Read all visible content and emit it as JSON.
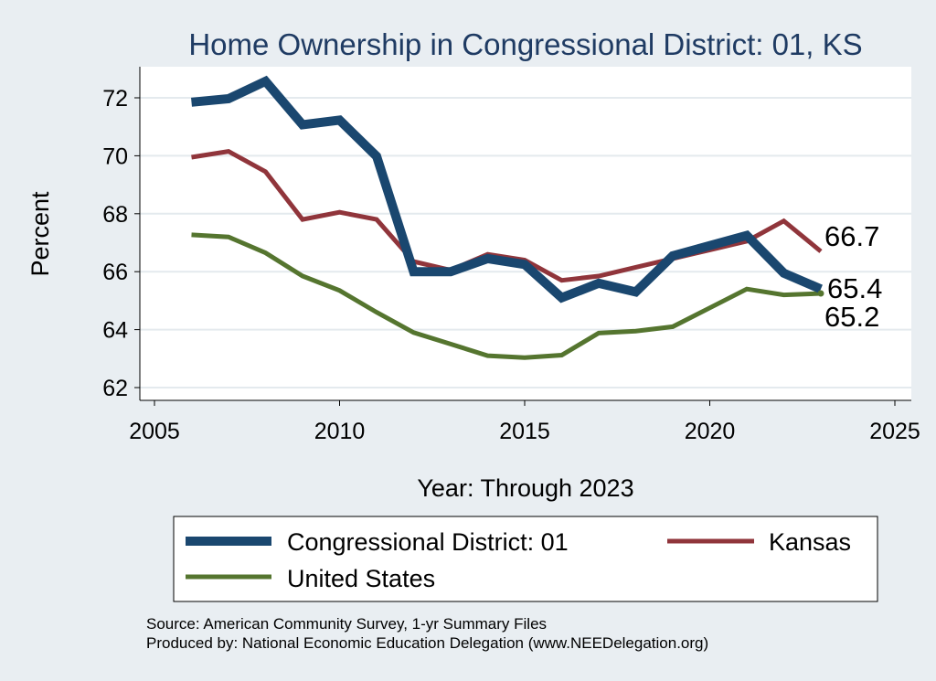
{
  "chart_data": {
    "type": "line",
    "title": "Home Ownership in Congressional District:  01, KS",
    "xlabel": "Year: Through 2023",
    "ylabel": "Percent",
    "xlim": [
      2005,
      2025
    ],
    "ylim": [
      62,
      73
    ],
    "x_ticks": [
      "2005",
      "2010",
      "2015",
      "2020",
      "2025"
    ],
    "y_ticks": [
      "62",
      "64",
      "66",
      "68",
      "70",
      "72"
    ],
    "grid": "horizontal",
    "legend_position": "bottom",
    "series": [
      {
        "name": "Congressional District:  01",
        "color": "#1a476f",
        "x": [
          2006,
          2007,
          2008,
          2009,
          2010,
          2011,
          2012,
          2013,
          2014,
          2015,
          2016,
          2017,
          2018,
          2019,
          2020,
          2021,
          2022,
          2023
        ],
        "values": [
          71.85,
          71.97,
          72.57,
          71.07,
          71.23,
          69.98,
          66.0,
          66.0,
          66.45,
          66.25,
          65.1,
          65.6,
          65.3,
          66.55,
          66.9,
          67.25,
          65.95,
          65.4
        ],
        "end_label": "65.4"
      },
      {
        "name": "Kansas",
        "color": "#90353b",
        "x": [
          2006,
          2007,
          2008,
          2009,
          2010,
          2011,
          2012,
          2013,
          2014,
          2015,
          2016,
          2017,
          2018,
          2019,
          2020,
          2021,
          2022,
          2023
        ],
        "values": [
          69.95,
          70.15,
          69.45,
          67.8,
          68.05,
          67.8,
          66.35,
          66.05,
          66.6,
          66.4,
          65.7,
          65.85,
          66.15,
          66.45,
          66.75,
          67.05,
          67.75,
          66.7
        ],
        "end_label": "66.7"
      },
      {
        "name": "United States",
        "color": "#55752f",
        "x": [
          2006,
          2007,
          2008,
          2009,
          2010,
          2011,
          2012,
          2013,
          2014,
          2015,
          2016,
          2017,
          2018,
          2019,
          2020,
          2021,
          2022,
          2023
        ],
        "values": [
          67.27,
          67.2,
          66.65,
          65.85,
          65.35,
          64.6,
          63.9,
          63.5,
          63.1,
          63.03,
          63.12,
          63.88,
          63.95,
          64.1,
          64.75,
          65.4,
          65.2,
          65.25
        ],
        "end_label": "65.2"
      }
    ],
    "source_note": "Source: American Community Survey, 1-yr Summary Files",
    "producer_note": "Produced by: National Economic Education Delegation (www.NEEDelegation.org)"
  }
}
